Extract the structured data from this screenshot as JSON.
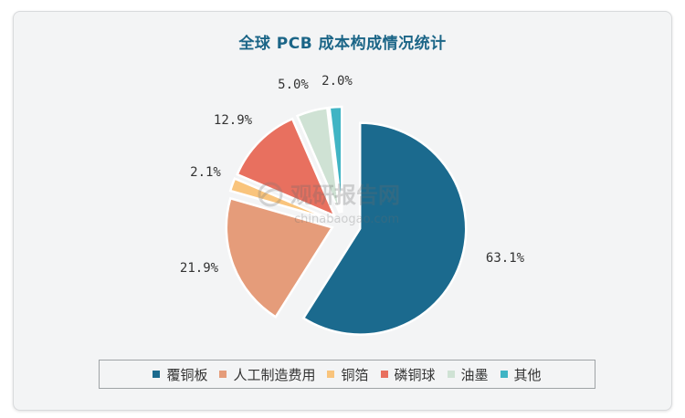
{
  "chart_data": {
    "type": "pie",
    "title": "全球 PCB 成本构成情况统计",
    "unit": "%",
    "categories": [
      "覆铜板",
      "人工制造费用",
      "铜箔",
      "磷铜球",
      "油墨",
      "其他"
    ],
    "values": [
      63.1,
      21.9,
      2.1,
      12.9,
      5.0,
      2.0
    ],
    "value_labels": [
      "63.1%",
      "21.9%",
      "2.1%",
      "12.9%",
      "5.0%",
      "2.0%"
    ],
    "colors": [
      "#1b6a8e",
      "#e59c7a",
      "#f9c47c",
      "#e8705f",
      "#cfe2d4",
      "#40b4c4"
    ],
    "exploded": true,
    "legend_position": "bottom"
  },
  "watermark": {
    "cn": "观研报告网",
    "en": "chinabaogao.com"
  }
}
